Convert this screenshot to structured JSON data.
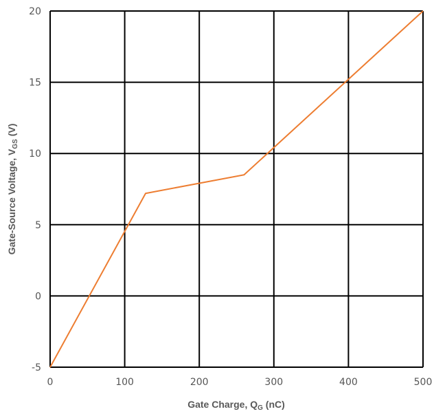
{
  "chart_data": {
    "type": "line",
    "xlabel_main": "Gate Charge, Q",
    "xlabel_sub": "G",
    "xlabel_tail": " (nC)",
    "ylabel_main": "Gate-Source Voltage, V",
    "ylabel_sub": "GS",
    "ylabel_tail": " (V)",
    "xlim": [
      0,
      500
    ],
    "ylim": [
      -5,
      20
    ],
    "xticks": [
      "0",
      "100",
      "200",
      "300",
      "400",
      "500"
    ],
    "yticks": [
      "-5",
      "0",
      "5",
      "10",
      "15",
      "20"
    ],
    "grid": true,
    "series": [
      {
        "color": "#ED7D31",
        "points": [
          [
            0,
            -5
          ],
          [
            128,
            7.2
          ],
          [
            260,
            8.5
          ],
          [
            500,
            20
          ]
        ]
      }
    ]
  }
}
